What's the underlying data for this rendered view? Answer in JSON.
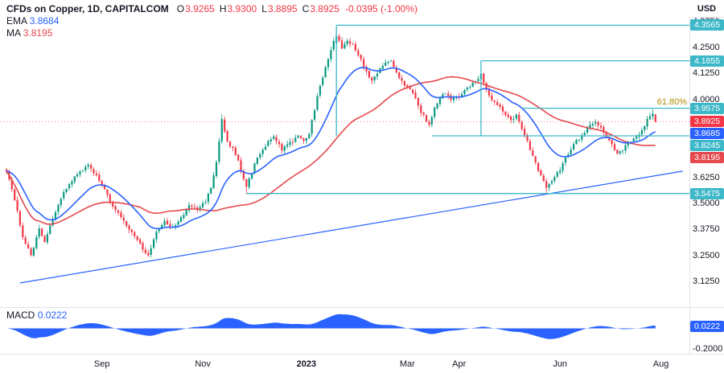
{
  "header": {
    "symbol_title": "CFDs on Copper, 1D, CAPITALCOM",
    "ohlc": {
      "pairs": [
        {
          "k": "O",
          "v": "3.9265"
        },
        {
          "k": "H",
          "v": "3.9300"
        },
        {
          "k": "L",
          "v": "3.8895"
        },
        {
          "k": "C",
          "v": "3.8925"
        }
      ],
      "change": "-0.0395 (-1.00%)"
    },
    "ema": {
      "label": "EMA",
      "value": "3.8684"
    },
    "ma": {
      "label": "MA",
      "value": "3.8195"
    }
  },
  "price_axis": {
    "currency": "USD",
    "ticks": [
      {
        "label": "4.3750",
        "price": 4.375
      },
      {
        "label": "4.2500",
        "price": 4.25
      },
      {
        "label": "4.1250",
        "price": 4.125
      },
      {
        "label": "4.0000",
        "price": 4.0
      },
      {
        "label": "3.6250",
        "price": 3.625
      },
      {
        "label": "3.5000",
        "price": 3.5
      },
      {
        "label": "3.3750",
        "price": 3.375
      },
      {
        "label": "3.2500",
        "price": 3.25
      },
      {
        "label": "3.1250",
        "price": 3.125
      }
    ],
    "badges": [
      {
        "label": "4.3565",
        "price": 4.3565,
        "bg": "level"
      },
      {
        "label": "4.1855",
        "price": 4.1855,
        "bg": "level"
      },
      {
        "label": "3.9575",
        "price": 3.9575,
        "bg": "level"
      },
      {
        "label": "3.8925",
        "price": 3.8925,
        "bg": "down"
      },
      {
        "label": "3.8685",
        "price": 3.8685,
        "bg": "ema"
      },
      {
        "label": "3.8245",
        "price": 3.8245,
        "bg": "level"
      },
      {
        "label": "3.8195",
        "price": 3.8195,
        "bg": "ma"
      },
      {
        "label": "3.5475",
        "price": 3.5475,
        "bg": "level"
      }
    ]
  },
  "time_axis": {
    "labels": [
      {
        "text": "Sep",
        "day": 35,
        "bold": false
      },
      {
        "text": "Nov",
        "day": 72,
        "bold": false
      },
      {
        "text": "2023",
        "day": 110,
        "bold": true
      },
      {
        "text": "Mar",
        "day": 147,
        "bold": false
      },
      {
        "text": "Apr",
        "day": 166,
        "bold": false
      },
      {
        "text": "Jun",
        "day": 203,
        "bold": false
      },
      {
        "text": "Aug",
        "day": 240,
        "bold": false
      }
    ]
  },
  "macd": {
    "label": "MACD",
    "value": "0.0222",
    "badge": "0.0222",
    "axis_label": "-0.2000"
  },
  "chart_data": {
    "type": "candlestick",
    "title": "CFDs on Copper, 1D, CAPITALCOM",
    "timeframe": "1D",
    "currency": "USD",
    "ylim": [
      3.01,
      4.48
    ],
    "num_candles": 239,
    "last_candle": {
      "open": 3.9265,
      "high": 3.93,
      "low": 3.8895,
      "close": 3.8925,
      "change": -0.0395,
      "change_pct": -1.0
    },
    "indicator_readouts": {
      "ema": 3.8684,
      "ma": 3.8195,
      "macd": 0.0222
    },
    "indicators": {
      "ema_period": 20,
      "sma_period": 50,
      "macd_fast": 12,
      "macd_slow": 26
    },
    "price_waypoints": [
      [
        0,
        3.66
      ],
      [
        3,
        3.52
      ],
      [
        6,
        3.34
      ],
      [
        9,
        3.25
      ],
      [
        12,
        3.38
      ],
      [
        14,
        3.32
      ],
      [
        17,
        3.43
      ],
      [
        21,
        3.55
      ],
      [
        24,
        3.61
      ],
      [
        27,
        3.65
      ],
      [
        30,
        3.69
      ],
      [
        32,
        3.65
      ],
      [
        35,
        3.59
      ],
      [
        39,
        3.49
      ],
      [
        42,
        3.43
      ],
      [
        45,
        3.38
      ],
      [
        48,
        3.33
      ],
      [
        50,
        3.28
      ],
      [
        52,
        3.25
      ],
      [
        55,
        3.36
      ],
      [
        58,
        3.41
      ],
      [
        61,
        3.38
      ],
      [
        64,
        3.43
      ],
      [
        67,
        3.49
      ],
      [
        70,
        3.47
      ],
      [
        73,
        3.51
      ],
      [
        75,
        3.57
      ],
      [
        77,
        3.7
      ],
      [
        79,
        3.9
      ],
      [
        81,
        3.8
      ],
      [
        83,
        3.76
      ],
      [
        85,
        3.7
      ],
      [
        88,
        3.58
      ],
      [
        90,
        3.65
      ],
      [
        92,
        3.72
      ],
      [
        95,
        3.78
      ],
      [
        98,
        3.82
      ],
      [
        101,
        3.76
      ],
      [
        104,
        3.79
      ],
      [
        107,
        3.82
      ],
      [
        109,
        3.8
      ],
      [
        111,
        3.84
      ],
      [
        114,
        4.01
      ],
      [
        117,
        4.16
      ],
      [
        120,
        4.28
      ],
      [
        121,
        4.31
      ],
      [
        123,
        4.25
      ],
      [
        125,
        4.28
      ],
      [
        127,
        4.26
      ],
      [
        130,
        4.19
      ],
      [
        132,
        4.13
      ],
      [
        134,
        4.09
      ],
      [
        136,
        4.13
      ],
      [
        139,
        4.17
      ],
      [
        141,
        4.18
      ],
      [
        144,
        4.11
      ],
      [
        146,
        4.07
      ],
      [
        148,
        4.05
      ],
      [
        150,
        4.0
      ],
      [
        152,
        3.94
      ],
      [
        155,
        3.88
      ],
      [
        157,
        3.96
      ],
      [
        159,
        4.01
      ],
      [
        161,
        4.03
      ],
      [
        163,
        4.0
      ],
      [
        166,
        4.01
      ],
      [
        168,
        4.04
      ],
      [
        170,
        4.06
      ],
      [
        172,
        4.09
      ],
      [
        174,
        4.12
      ],
      [
        176,
        4.05
      ],
      [
        178,
        4.0
      ],
      [
        181,
        3.96
      ],
      [
        183,
        3.92
      ],
      [
        185,
        3.9
      ],
      [
        187,
        3.92
      ],
      [
        189,
        3.86
      ],
      [
        192,
        3.76
      ],
      [
        194,
        3.69
      ],
      [
        196,
        3.63
      ],
      [
        198,
        3.575
      ],
      [
        200,
        3.61
      ],
      [
        203,
        3.66
      ],
      [
        205,
        3.72
      ],
      [
        207,
        3.76
      ],
      [
        209,
        3.8
      ],
      [
        212,
        3.84
      ],
      [
        214,
        3.88
      ],
      [
        216,
        3.895
      ],
      [
        218,
        3.86
      ],
      [
        220,
        3.82
      ],
      [
        222,
        3.78
      ],
      [
        224,
        3.745
      ],
      [
        226,
        3.76
      ],
      [
        228,
        3.79
      ],
      [
        231,
        3.82
      ],
      [
        233,
        3.85
      ],
      [
        235,
        3.9
      ],
      [
        237,
        3.93
      ],
      [
        238,
        3.8925
      ]
    ],
    "candle_overrides": {
      "79": {
        "h": 3.928
      },
      "88": {
        "l": 3.5475
      },
      "121": {
        "o": 4.27,
        "c": 4.305,
        "h": 4.3565
      },
      "174": {
        "h": 4.1855
      },
      "198": {
        "l": 3.5475
      },
      "237": {
        "c": 3.932
      },
      "238": {
        "o": 3.9265,
        "h": 3.93,
        "l": 3.8895,
        "c": 3.8925
      }
    },
    "levels": [
      {
        "price": 4.3565,
        "from_day": 121
      },
      {
        "price": 4.1855,
        "from_day": 174
      },
      {
        "price": 3.9575,
        "from_day": 189
      },
      {
        "price": 3.8245,
        "from_day": 156
      },
      {
        "price": 3.5475,
        "from_day": 88
      }
    ],
    "vertical_segments": [
      {
        "day": 121,
        "from_price": 4.3565,
        "to_price": 3.8245
      },
      {
        "day": 174,
        "from_price": 4.1855,
        "to_price": 3.8245
      }
    ],
    "trendline": {
      "from": {
        "day": 5,
        "price": 3.117
      },
      "to": {
        "day": 248,
        "price": 3.655
      }
    },
    "fib_label": {
      "text": "61.80%",
      "level": 3.9575,
      "color": "#b08c00"
    },
    "macd_axis": {
      "badge_value": 0.0222,
      "tick_value": -0.2
    },
    "colors": {
      "up": "#089981",
      "down": "#f23645",
      "ema": "#2962ff",
      "ma": "#e5484d",
      "level": "#3cb8c9",
      "trend": "#2962ff",
      "macd_fill": "#2962ff",
      "fib_text": "#b08c00",
      "axis_text": "#131722",
      "separator": "#e0e3eb"
    }
  }
}
